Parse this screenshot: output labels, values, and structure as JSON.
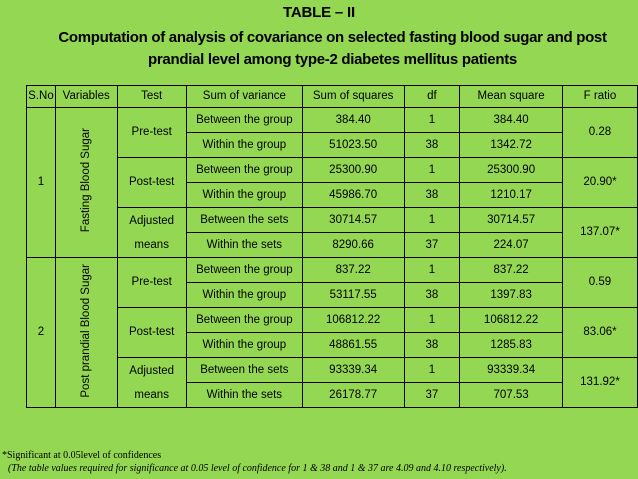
{
  "title": "TABLE – II",
  "subtitle": "Computation of analysis of covariance on selected fasting blood sugar and post prandial level among type-2 diabetes mellitus patients",
  "table": {
    "headers": [
      "S.No",
      "Variables",
      "Test",
      "Sum of variance",
      "Sum of squares",
      "df",
      "Mean square",
      "F ratio"
    ],
    "groups": [
      {
        "sno": "1",
        "variable": "Fasting Blood Sugar",
        "tests": [
          {
            "label": "Pre-test",
            "rows": [
              {
                "source": "Between the group",
                "ss": "384.40",
                "df": "1",
                "ms": "384.40"
              },
              {
                "source": "Within the group",
                "ss": "51023.50",
                "df": "38",
                "ms": "1342.72"
              }
            ],
            "f_ratio": "0.28"
          },
          {
            "label": "Post-test",
            "rows": [
              {
                "source": "Between the group",
                "ss": "25300.90",
                "df": "1",
                "ms": "25300.90"
              },
              {
                "source": "Within the group",
                "ss": "45986.70",
                "df": "38",
                "ms": "1210.17"
              }
            ],
            "f_ratio": "20.90*"
          },
          {
            "label_line1": "Adjusted",
            "label_line2": "means",
            "rows": [
              {
                "source": "Between the sets",
                "ss": "30714.57",
                "df": "1",
                "ms": "30714.57"
              },
              {
                "source": "Within the sets",
                "ss": "8290.66",
                "df": "37",
                "ms": "224.07"
              }
            ],
            "f_ratio": "137.07*"
          }
        ]
      },
      {
        "sno": "2",
        "variable": "Post prandial Blood Sugar",
        "tests": [
          {
            "label": "Pre-test",
            "rows": [
              {
                "source": "Between the group",
                "ss": "837.22",
                "df": "1",
                "ms": "837.22"
              },
              {
                "source": "Within the group",
                "ss": "53117.55",
                "df": "38",
                "ms": "1397.83"
              }
            ],
            "f_ratio": "0.59"
          },
          {
            "label": "Post-test",
            "rows": [
              {
                "source": "Between the group",
                "ss": "106812.22",
                "df": "1",
                "ms": "106812.22"
              },
              {
                "source": "Within the group",
                "ss": "48861.55",
                "df": "38",
                "ms": "1285.83"
              }
            ],
            "f_ratio": "83.06*"
          },
          {
            "label_line1": "Adjusted",
            "label_line2": "means",
            "rows": [
              {
                "source": "Between the sets",
                "ss": "93339.34",
                "df": "1",
                "ms": "93339.34"
              },
              {
                "source": "Within the sets",
                "ss": "26178.77",
                "df": "37",
                "ms": "707.53"
              }
            ],
            "f_ratio": "131.92*"
          }
        ]
      }
    ]
  },
  "footnote_1": "*Significant at 0.05level of confidences",
  "footnote_2": "(The table values required for significance at 0.05 level of confidence for 1 & 38 and 1 & 37 are 4.09 and 4.10 respectively).",
  "colors": {
    "background": "#94D752",
    "text": "#000000"
  }
}
